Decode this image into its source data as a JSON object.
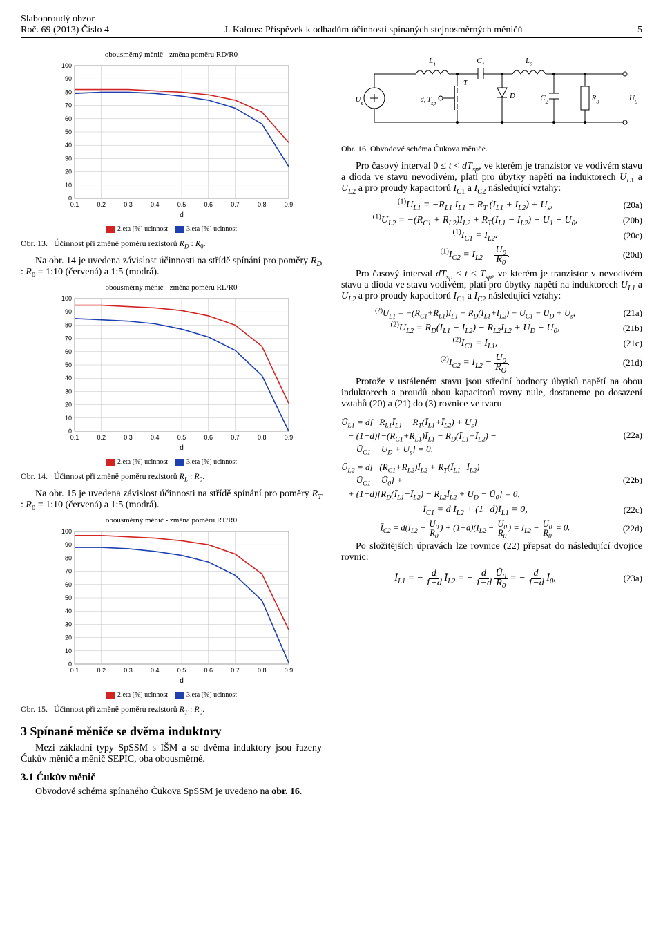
{
  "header": {
    "journal": "Slaboproudý obzor",
    "issue": "Roč. 69 (2013) Číslo 4",
    "author_title": "J. Kalous: Příspěvek k odhadům účinnosti spínaných stejnosměrných měničů",
    "page": "5"
  },
  "charts_common": {
    "type": "line",
    "x_label": "d",
    "x_values": [
      0.1,
      0.2,
      0.3,
      0.4,
      0.5,
      0.6,
      0.7,
      0.8,
      0.9
    ],
    "xlim": [
      0.1,
      0.9
    ],
    "ylim": [
      0,
      100
    ],
    "ytick_step": 10,
    "grid_color": "#c0c0c0",
    "background_color": "#ffffff",
    "line_width": 1.6,
    "legend": [
      {
        "label": "2.eta [%] ucinnost",
        "color": "#d32424"
      },
      {
        "label": "3.eta [%] ucinnost",
        "color": "#1e3fb0"
      }
    ],
    "title_fontsize": 11,
    "tick_fontsize": 9
  },
  "chart13": {
    "title": "obousměrný měnič - změna poměru RD/R0",
    "series": [
      {
        "name": "2.eta",
        "color": "#d32424",
        "y": [
          82,
          82,
          82,
          81,
          80,
          78,
          74,
          65,
          42
        ]
      },
      {
        "name": "3.eta",
        "color": "#1e3fb0",
        "y": [
          79,
          80,
          80,
          79,
          77,
          74,
          68,
          56,
          24
        ]
      }
    ]
  },
  "chart14": {
    "title": "obousměrný měnič - změna poměru RL/R0",
    "series": [
      {
        "name": "2.eta",
        "color": "#d32424",
        "y": [
          95,
          95,
          94,
          93,
          91,
          87,
          80,
          64,
          21
        ]
      },
      {
        "name": "3.eta",
        "color": "#1e3fb0",
        "y": [
          85,
          84,
          83,
          81,
          77,
          71,
          61,
          42,
          0
        ]
      }
    ]
  },
  "chart15": {
    "title": "obousměrný měnič - změna poměru RT/R0",
    "series": [
      {
        "name": "2.eta",
        "color": "#d32424",
        "y": [
          97,
          97,
          96,
          95,
          93,
          90,
          83,
          68,
          26
        ]
      },
      {
        "name": "3.eta",
        "color": "#1e3fb0",
        "y": [
          88,
          88,
          87,
          85,
          82,
          77,
          67,
          48,
          1
        ]
      }
    ]
  },
  "captions": {
    "c13": "Obr. 13.   Účinnost při změně poměru rezistorů R_D : R_0.",
    "c13b": "Na obr. 14 je uvedena závislost účinnosti na střídě spínání pro poměry R_D : R_0 = 1:10 (červená) a 1:5 (modrá).",
    "c14": "Obr. 14.   Účinnost při změně poměru rezistorů R_L : R_0.",
    "c14b": "Na obr. 15 je uvedena závislost účinnosti na střídě spínání pro poměry R_T : R_0 = 1:10 (červená) a 1:5 (modrá).",
    "c15": "Obr. 15.   Účinnost při změně poměru rezistorů R_T : R_0."
  },
  "section3": {
    "title": "3   Spínané měniče se dvěma induktory",
    "p1": "Mezi základní typy SpSSM s IŠM a se dvěma induktory jsou řazeny Ćukův měnič a měnič SEPIC, oba obousměrné.",
    "sub31": "3.1 Ćukův měnič",
    "p31": "Obvodové schéma spínaného Ćukova SpSSM je uvedeno na obr. 16."
  },
  "circuit": {
    "caption": "Obr. 16.   Obvodové schéma Ćukova měniče.",
    "labels": [
      "U_s",
      "L_1",
      "C_1",
      "L_2",
      "T",
      "d, T_sp",
      "D",
      "C_2",
      "R_0",
      "U_0"
    ],
    "line_color": "#000000",
    "bg": "#ffffff"
  },
  "right_text": {
    "p1": "Pro časový interval 0 ≤ t < dT_sp, ve kterém je tranzistor ve vodivém stavu a dioda ve stavu nevodivém, platí pro úbytky napětí na induktorech U_L1 a U_L2 a pro proudy kapacitorů I_C1 a I_C2 následující vztahy:",
    "p2": "Pro časový interval dT_sp ≤ t < T_sp, ve kterém je tranzistor v nevodivém stavu a dioda ve stavu vodivém, platí pro úbytky napětí na induktorech U_L1 a U_L2 a pro proudy kapacitorů I_C1 a I_C2 následující vztahy:",
    "p3": "Protože v ustáleném stavu jsou střední hodnoty úbytků napětí na obou induktorech a proudů obou kapacitorů rovny nule, dostaneme po dosazení vztahů (20) a (21) do (3) rovnice ve tvaru",
    "p4": "Po složitějších úpravách lze rovnice (22) přepsat do následující dvojice rovnic:"
  },
  "equations": {
    "e20a": {
      "num": "(20a)",
      "tex": "^{(1)}U_{L1} = −R_{L1} I_{L1} − R_T (I_{L1} + I_{L2}) + U_s,"
    },
    "e20b": {
      "num": "(20b)",
      "tex": "^{(1)}U_{L2} = −(R_{C1} + R_{L2}) I_{L2} + R_T (I_{L1} − I_{L2}) − U_{C1} − U_0,"
    },
    "e20c": {
      "num": "(20c)",
      "tex": "^{(1)}I_{C1} = I_{L2}."
    },
    "e20d": {
      "num": "(20d)",
      "tex": "^{(1)}I_{C2} = I_{L2} − U_0 / R_0."
    },
    "e21a": {
      "num": "(21a)",
      "tex": "^{(2)}U_{L1} = −(R_{C1} + R_{L1}) I_{L1} − R_D (I_{L1} + I_{L2}) − U_{C1} − U_D + U_s,"
    },
    "e21b": {
      "num": "(21b)",
      "tex": "^{(2)}U_{L2} = R_D (I_{L1} − I_{L2}) − R_{L2} I_{L2} + U_D − U_0,"
    },
    "e21c": {
      "num": "(21c)",
      "tex": "^{(2)}I_{C1} = I_{L1},"
    },
    "e21d": {
      "num": "(21d)",
      "tex": "^{(2)}I_{C2} = I_{L2} − U_0 / R_O."
    },
    "e22a": {
      "num": "(22a)",
      "tex": "Ū_{L1} = d[−R_{L1} Ī_{L1} − R_T (Ī_{L1} + Ī_{L2}) + U_s] − (1−d)[−(R_{C1}+R_{L1}) Ī_{L1} − R_D (Ī_{L1}+Ī_{L2}) − Ū_{C1} − U_D + U_s] = 0,"
    },
    "e22b": {
      "num": "(22b)",
      "tex": "Ū_{L2} = d[−(R_{C1}+R_{L2}) Ī_{L2} + R_T (Ī_{L1}−Ī_{L2}) − Ū_{C1} − Ū_0] + (1−d)[R_D (Ī_{L1}−Ī_{L2}) − R_{L2} Ī_{L2} + U_D − Ū_0] = 0,"
    },
    "e22c": {
      "num": "(22c)",
      "tex": "Ī_{C1} = d Ī_{L2} + (1−d) Ī_{L1} = 0,"
    },
    "e22d": {
      "num": "(22d)",
      "tex": "Ī_{C2} = d(I_{L2} − Ū_0/R_0) + (1−d)(I_{L2} − Ū_0/R_0) = I_{L2} − Ū_0/R_0 = 0."
    },
    "e23a": {
      "num": "(23a)",
      "tex": "Ī_{L1} = − d/(1−d) · Ī_{L2} = − d/(1−d) · Ū_0/R_0 = − d/(1−d) · Ī_0,"
    }
  }
}
